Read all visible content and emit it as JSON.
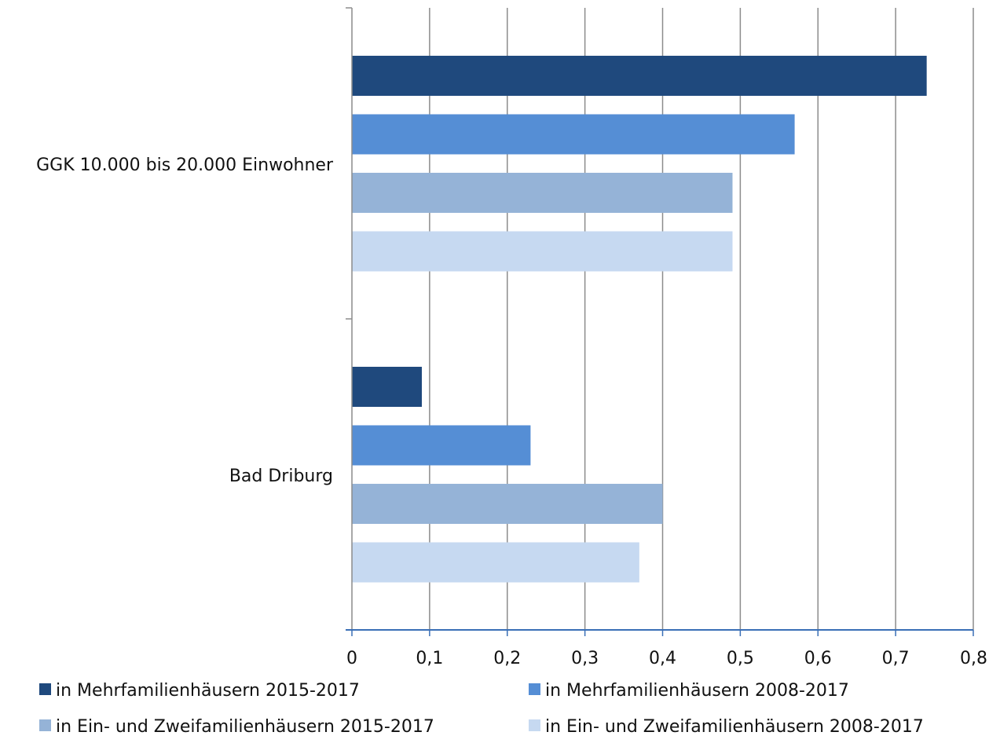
{
  "chart_data": {
    "type": "bar",
    "orientation": "horizontal",
    "categories": [
      "GGK 10.000 bis 20.000 Einwohner",
      "Bad Driburg"
    ],
    "series": [
      {
        "name": "in Mehrfamilienhäusern 2015-2017",
        "color": "#1f497d",
        "values": [
          0.74,
          0.09
        ]
      },
      {
        "name": "in Mehrfamilienhäusern 2008-2017",
        "color": "#558ed5",
        "values": [
          0.57,
          0.23
        ]
      },
      {
        "name": "in Ein- und Zweifamilienhäusern 2015-2017",
        "color": "#95b3d7",
        "values": [
          0.49,
          0.4
        ]
      },
      {
        "name": "in Ein- und Zweifamilienhäusern 2008-2017",
        "color": "#c6d9f1",
        "values": [
          0.49,
          0.37
        ]
      }
    ],
    "xlim": [
      0,
      0.8
    ],
    "x_ticks": [
      "0",
      "0,1",
      "0,2",
      "0,3",
      "0,4",
      "0,5",
      "0,6",
      "0,7",
      "0,8"
    ],
    "grid": true,
    "legend_position": "bottom",
    "title": "",
    "xlabel": "",
    "ylabel": ""
  }
}
